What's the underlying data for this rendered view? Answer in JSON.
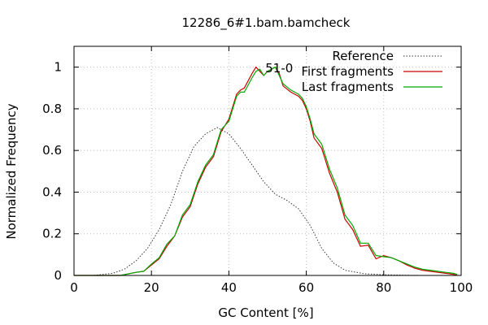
{
  "chart_data": {
    "type": "line",
    "title": "12286_6#1.bam.bamcheck",
    "xlabel": "GC Content [%]",
    "ylabel": "Normalized Frequency",
    "xlim": [
      0,
      100
    ],
    "ylim": [
      0,
      1.1
    ],
    "xticks": [
      0,
      20,
      40,
      60,
      80,
      100
    ],
    "yticks": [
      0,
      0.2,
      0.4,
      0.6,
      0.8,
      1
    ],
    "ytick_labels": [
      "0",
      "0.2",
      "0.4",
      "0.6",
      "0.8",
      "1"
    ],
    "grid": true,
    "legend_position": "top-right",
    "annotation": {
      "text": "51-0",
      "x": 53,
      "y": 0.995
    },
    "series": [
      {
        "name": "Reference",
        "color": "#333333",
        "style": "dotted",
        "x": [
          0,
          5,
          10,
          13,
          16,
          19,
          22,
          25,
          28,
          31,
          34,
          37,
          40,
          43,
          46,
          49,
          52,
          55,
          58,
          61,
          64,
          67,
          70,
          75,
          80,
          85,
          90
        ],
        "y": [
          0,
          0,
          0.01,
          0.03,
          0.07,
          0.13,
          0.22,
          0.34,
          0.5,
          0.62,
          0.68,
          0.71,
          0.68,
          0.61,
          0.53,
          0.45,
          0.39,
          0.36,
          0.32,
          0.24,
          0.13,
          0.06,
          0.025,
          0.008,
          0.003,
          0.001,
          0
        ]
      },
      {
        "name": "First fragments",
        "color": "#cc0000",
        "style": "solid",
        "x": [
          0,
          4,
          8,
          12,
          16,
          18,
          20,
          22,
          24,
          26,
          28,
          30,
          32,
          34,
          36,
          38,
          40,
          42,
          43,
          44,
          46,
          47,
          48,
          49,
          50,
          52,
          53,
          54,
          56,
          58,
          59,
          60,
          61,
          62,
          64,
          66,
          68,
          70,
          72,
          74,
          76,
          78,
          80,
          82,
          84,
          86,
          88,
          90,
          92,
          94,
          96,
          98,
          99
        ],
        "y": [
          0,
          0,
          0,
          0,
          0.015,
          0.02,
          0.05,
          0.08,
          0.14,
          0.19,
          0.28,
          0.33,
          0.44,
          0.52,
          0.57,
          0.69,
          0.75,
          0.87,
          0.89,
          0.9,
          0.97,
          1.0,
          0.98,
          0.96,
          0.98,
          1.0,
          0.97,
          0.91,
          0.88,
          0.86,
          0.84,
          0.8,
          0.74,
          0.66,
          0.61,
          0.49,
          0.4,
          0.27,
          0.22,
          0.14,
          0.145,
          0.08,
          0.095,
          0.085,
          0.07,
          0.05,
          0.035,
          0.025,
          0.02,
          0.015,
          0.01,
          0.005,
          0
        ]
      },
      {
        "name": "Last fragments",
        "color": "#00aa00",
        "style": "solid",
        "x": [
          0,
          4,
          8,
          12,
          16,
          18,
          20,
          22,
          24,
          26,
          28,
          30,
          32,
          34,
          36,
          38,
          40,
          42,
          43,
          44,
          46,
          47,
          48,
          49,
          50,
          52,
          53,
          54,
          56,
          58,
          59,
          60,
          61,
          62,
          64,
          66,
          68,
          70,
          72,
          74,
          76,
          78,
          80,
          82,
          84,
          86,
          88,
          90,
          92,
          94,
          96,
          98,
          99
        ],
        "y": [
          0,
          0,
          0,
          0,
          0.015,
          0.02,
          0.055,
          0.085,
          0.15,
          0.19,
          0.29,
          0.34,
          0.45,
          0.53,
          0.58,
          0.7,
          0.74,
          0.86,
          0.88,
          0.88,
          0.95,
          0.98,
          0.99,
          0.96,
          0.98,
          1.0,
          0.96,
          0.92,
          0.89,
          0.87,
          0.85,
          0.81,
          0.75,
          0.68,
          0.63,
          0.51,
          0.42,
          0.29,
          0.24,
          0.155,
          0.155,
          0.095,
          0.09,
          0.085,
          0.07,
          0.055,
          0.04,
          0.03,
          0.025,
          0.02,
          0.015,
          0.01,
          0.005
        ]
      }
    ]
  }
}
